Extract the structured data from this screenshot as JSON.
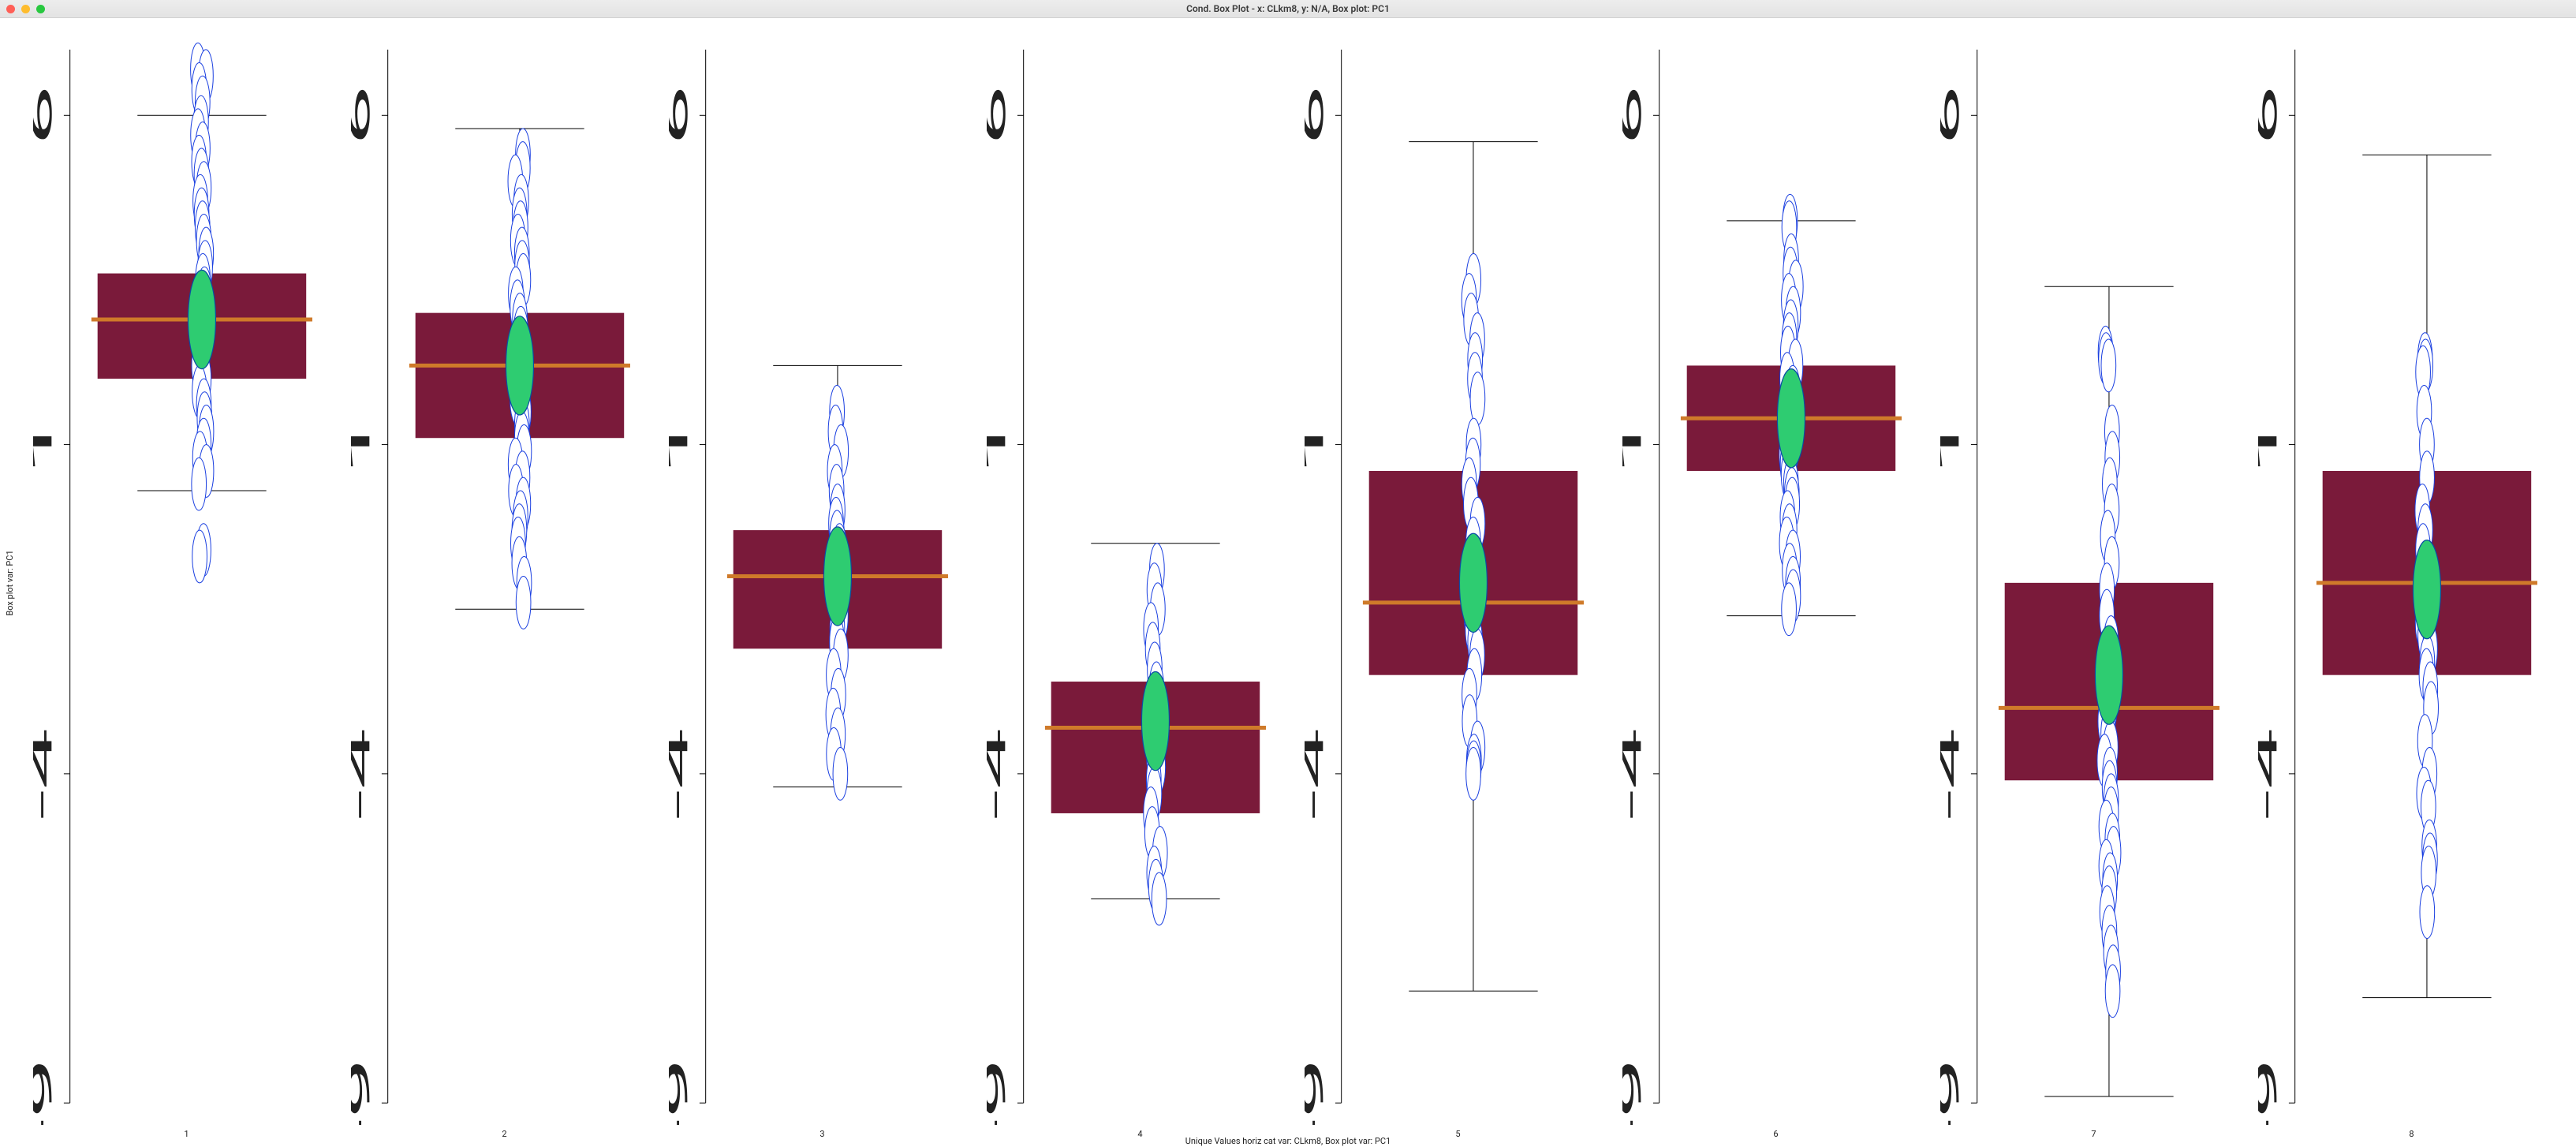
{
  "window": {
    "title": "Cond. Box Plot - x: CLkm8, y: N/A, Box plot: PC1"
  },
  "plot": {
    "type": "boxplot",
    "ylabel": "Box plot var: PC1",
    "xlabel": "Unique Values horiz cat var: CLkm8,   Box plot var: PC1",
    "y_axis": {
      "min": -9,
      "max": 7,
      "ticks": [
        -9,
        -4,
        1,
        6
      ]
    },
    "categories": [
      "1",
      "2",
      "3",
      "4",
      "5",
      "6",
      "7",
      "8"
    ],
    "colors": {
      "box_fill": "#7a1a3a",
      "median_line": "#cf7a2a",
      "mean_fill": "#2ecc71",
      "mean_stroke": "#0a4da3",
      "point_stroke": "#1a3fe0",
      "point_fill": "#ffffff",
      "whisker": "#000000",
      "axis": "#000000",
      "background": "#ffffff"
    },
    "style": {
      "box_rel_width": 0.68,
      "median_thickness": 5,
      "whisker_thickness": 1,
      "cap_rel_width": 0.42,
      "point_radius": 2.4,
      "mean_radius": 4.5,
      "axis_width": 1
    },
    "boxes": [
      {
        "q1": 2.0,
        "median": 2.9,
        "q3": 3.6,
        "whisker_low": 0.3,
        "whisker_high": 6.0,
        "mean": 2.9,
        "points": [
          6.7,
          6.6,
          6.4,
          6.2,
          5.9,
          5.7,
          5.5,
          5.3,
          5.1,
          4.9,
          4.7,
          4.5,
          4.3,
          4.1,
          3.9,
          3.7,
          3.5,
          3.3,
          3.1,
          2.95,
          2.8,
          2.6,
          2.4,
          2.2,
          2.0,
          1.8,
          1.6,
          1.4,
          1.2,
          1.0,
          0.8,
          0.6,
          0.4,
          -0.6,
          -0.7
        ]
      },
      {
        "q1": 1.1,
        "median": 2.2,
        "q3": 3.0,
        "whisker_low": -1.5,
        "whisker_high": 5.8,
        "mean": 2.2,
        "points": [
          5.4,
          5.2,
          5.0,
          4.7,
          4.5,
          4.3,
          4.1,
          3.9,
          3.7,
          3.5,
          3.3,
          3.1,
          2.9,
          2.7,
          2.5,
          2.3,
          2.1,
          1.9,
          1.7,
          1.5,
          1.3,
          1.1,
          0.9,
          0.7,
          0.5,
          0.3,
          0.1,
          -0.1,
          -0.3,
          -0.5,
          -0.8,
          -1.1,
          -1.4
        ]
      },
      {
        "q1": -2.1,
        "median": -1.0,
        "q3": -0.3,
        "whisker_low": -4.2,
        "whisker_high": 2.2,
        "mean": -1.0,
        "points": [
          1.5,
          1.2,
          0.9,
          0.6,
          0.3,
          0.0,
          -0.2,
          -0.4,
          -0.6,
          -0.8,
          -1.0,
          -1.2,
          -1.4,
          -1.6,
          -1.8,
          -2.0,
          -2.2,
          -2.5,
          -2.8,
          -3.1,
          -3.4,
          -3.7,
          -4.0
        ]
      },
      {
        "q1": -4.6,
        "median": -3.3,
        "q3": -2.6,
        "whisker_low": -5.9,
        "whisker_high": -0.5,
        "mean": -3.2,
        "points": [
          -0.9,
          -1.2,
          -1.5,
          -1.8,
          -2.1,
          -2.4,
          -2.7,
          -2.9,
          -3.1,
          -3.3,
          -3.5,
          -3.7,
          -3.9,
          -4.1,
          -4.3,
          -4.6,
          -4.9,
          -5.2,
          -5.5,
          -5.7,
          -5.9
        ]
      },
      {
        "q1": -2.5,
        "median": -1.4,
        "q3": 0.6,
        "whisker_low": -7.3,
        "whisker_high": 5.6,
        "mean": -1.1,
        "points": [
          3.5,
          3.2,
          2.9,
          2.6,
          2.3,
          2.0,
          1.7,
          1.0,
          0.7,
          0.4,
          0.1,
          -0.2,
          -0.5,
          -0.8,
          -1.0,
          -1.2,
          -1.4,
          -1.6,
          -1.8,
          -2.0,
          -2.2,
          -2.5,
          -2.8,
          -3.2,
          -3.6,
          -3.8,
          -3.9,
          -4.0
        ]
      },
      {
        "q1": 0.6,
        "median": 1.4,
        "q3": 2.2,
        "whisker_low": -1.6,
        "whisker_high": 4.4,
        "mean": 1.4,
        "points": [
          4.4,
          4.3,
          3.8,
          3.6,
          3.4,
          3.2,
          3.0,
          2.8,
          2.6,
          2.4,
          2.2,
          2.0,
          1.8,
          1.6,
          1.45,
          1.3,
          1.15,
          1.0,
          0.85,
          0.7,
          0.55,
          0.4,
          0.25,
          0.1,
          -0.1,
          -0.3,
          -0.5,
          -0.7,
          -0.9,
          -1.1,
          -1.3,
          -1.5
        ]
      },
      {
        "q1": -4.1,
        "median": -3.0,
        "q3": -1.1,
        "whisker_low": -8.9,
        "whisker_high": 3.4,
        "mean": -2.5,
        "points": [
          2.4,
          2.3,
          2.2,
          1.2,
          0.8,
          0.4,
          0.0,
          -0.4,
          -0.8,
          -1.2,
          -1.6,
          -2.0,
          -2.3,
          -2.6,
          -2.8,
          -3.0,
          -3.2,
          -3.4,
          -3.6,
          -3.8,
          -4.0,
          -4.2,
          -4.4,
          -4.6,
          -4.8,
          -5.0,
          -5.2,
          -5.4,
          -5.6,
          -5.8,
          -6.1,
          -6.4,
          -6.7,
          -7.0,
          -7.3
        ]
      },
      {
        "q1": -2.5,
        "median": -1.1,
        "q3": 0.6,
        "whisker_low": -7.4,
        "whisker_high": 5.4,
        "mean": -1.2,
        "points": [
          2.3,
          2.2,
          2.1,
          1.5,
          1.0,
          0.5,
          0.0,
          -0.3,
          -0.6,
          -0.9,
          -1.1,
          -1.3,
          -1.5,
          -1.7,
          -1.9,
          -2.1,
          -2.3,
          -2.5,
          -2.7,
          -3.0,
          -3.5,
          -4.0,
          -4.3,
          -4.5,
          -5.1,
          -5.3,
          -5.5,
          -6.1
        ]
      }
    ]
  }
}
